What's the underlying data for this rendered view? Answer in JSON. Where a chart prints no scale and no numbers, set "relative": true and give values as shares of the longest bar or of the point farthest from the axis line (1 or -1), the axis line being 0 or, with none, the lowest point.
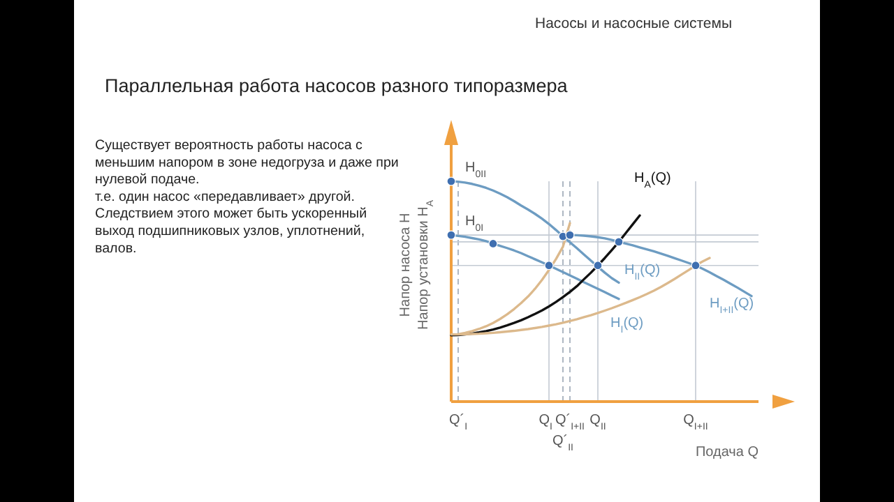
{
  "chart_data": {
    "type": "line",
    "relative": true,
    "title": "Параллельная работа насосов разного типоразмера",
    "xlabel": "Подача Q",
    "ylabel": "Напор насоса H\nНапор установки H$_{A}$",
    "line_style": "solid",
    "categories": [
      null,
      "Q´$_{I}$",
      null,
      null,
      null,
      null,
      null,
      null,
      null,
      null,
      null,
      null,
      null,
      null,
      "Q$_{I}$",
      null,
      "Q´$_{II}$",
      "Q´$_{I+II}$",
      null,
      null,
      null,
      "Q$_{II}$",
      null,
      null,
      null,
      null,
      null,
      null,
      null,
      null,
      null,
      null,
      null,
      null,
      null,
      "Q$_{I+II}$",
      null,
      null,
      null,
      null,
      null,
      null,
      null,
      null,
      null
    ],
    "series": [
      {
        "name": "H$_{II}$(Q)",
        "color": "#6d9cc2",
        "values": [
          1,
          0.998,
          0.994,
          0.988,
          0.98,
          0.97,
          0.958,
          0.944,
          0.928,
          0.91,
          0.89,
          0.872,
          0.852,
          0.83,
          0.806,
          0.779,
          0.75,
          0.723,
          0.696,
          0.668,
          0.64,
          0.612,
          0.585,
          0.56,
          0.54,
          null,
          null,
          null,
          null,
          null,
          null,
          null,
          null,
          null,
          null,
          null,
          null,
          null,
          null,
          null,
          null,
          null,
          null,
          null,
          null
        ]
      },
      {
        "name": "H$_{I}$(Q)",
        "color": "#6d9cc2",
        "values": [
          0.756,
          0.752,
          0.748,
          0.742,
          0.736,
          0.728,
          0.717,
          0.707,
          0.697,
          0.686,
          0.674,
          0.66,
          0.646,
          0.632,
          0.618,
          0.603,
          0.588,
          0.573,
          0.558,
          0.542,
          0.527,
          0.512,
          0.497,
          0.481,
          0.466,
          null,
          null,
          null,
          null,
          null,
          null,
          null,
          null,
          null,
          null,
          null,
          null,
          null,
          null,
          null,
          null,
          null,
          null,
          null,
          null
        ]
      },
      {
        "name": "H$_{I+II}$(Q)",
        "color": "#6d9cc2",
        "values": [
          null,
          null,
          null,
          null,
          null,
          null,
          null,
          null,
          null,
          null,
          null,
          null,
          null,
          null,
          null,
          null,
          null,
          0.756,
          0.755,
          0.753,
          0.75,
          0.746,
          0.741,
          0.734,
          0.725,
          0.717,
          0.709,
          0.7,
          0.691,
          0.682,
          0.672,
          0.662,
          0.651,
          0.64,
          0.629,
          0.618,
          0.603,
          0.587,
          0.57,
          0.553,
          0.535,
          0.517,
          0.498,
          0.479,
          null
        ]
      },
      {
        "name": "H$_{A}$(Q)",
        "color": "#111111",
        "values": [
          0.301,
          0.302,
          0.305,
          0.309,
          0.314,
          0.32,
          0.327,
          0.336,
          0.346,
          0.357,
          0.369,
          0.383,
          0.398,
          0.414,
          0.432,
          0.452,
          0.474,
          0.498,
          0.524,
          0.555,
          0.585,
          0.618,
          0.652,
          0.688,
          0.725,
          0.765,
          0.805,
          0.845,
          null,
          null,
          null,
          null,
          null,
          null,
          null,
          null,
          null,
          null,
          null,
          null,
          null,
          null,
          null,
          null,
          null
        ]
      },
      {
        "color": "#dcb98c",
        "values": [
          null,
          0.306,
          0.312,
          0.32,
          0.33,
          0.342,
          0.357,
          0.375,
          0.396,
          0.42,
          0.447,
          0.477,
          0.512,
          0.552,
          0.597,
          0.647,
          0.703,
          0.81,
          null,
          null,
          null,
          null,
          null,
          null,
          null,
          null,
          null,
          null,
          null,
          null,
          null,
          null,
          null,
          null,
          null,
          null,
          null,
          null,
          null,
          null,
          null,
          null,
          null,
          null,
          null
        ]
      },
      {
        "color": "#dcb98c",
        "values": [
          0.305,
          0.305,
          0.306,
          0.307,
          0.308,
          0.31,
          0.312,
          0.315,
          0.318,
          0.321,
          0.325,
          0.329,
          0.334,
          0.339,
          0.345,
          0.351,
          0.358,
          0.366,
          0.374,
          0.383,
          0.392,
          0.402,
          0.413,
          0.424,
          0.436,
          0.448,
          0.461,
          0.474,
          0.488,
          0.503,
          0.52,
          0.538,
          0.557,
          0.577,
          0.597,
          0.618,
          0.636,
          0.652,
          null,
          null,
          null,
          null,
          null,
          null,
          null
        ]
      },
      {
        "type": "scatter",
        "marker": "circle",
        "color": "#3f6fb0",
        "values": [
          1,
          null,
          null,
          null,
          null,
          null,
          null,
          null,
          null,
          null,
          null,
          null,
          null,
          null,
          null,
          null,
          0.75,
          null,
          null,
          null,
          null,
          null,
          null,
          null,
          null,
          null,
          null,
          null,
          null,
          null,
          null,
          null,
          null,
          null,
          null,
          null,
          null,
          null,
          null,
          null,
          null,
          null,
          null,
          null,
          null
        ]
      },
      {
        "type": "scatter",
        "marker": "circle",
        "color": "#3f6fb0",
        "values": [
          0.756,
          null,
          null,
          null,
          null,
          null,
          0.717,
          null,
          null,
          null,
          null,
          null,
          null,
          null,
          0.618,
          null,
          null,
          null,
          null,
          null,
          null,
          null,
          null,
          null,
          null,
          null,
          null,
          null,
          null,
          null,
          null,
          null,
          null,
          null,
          null,
          null,
          null,
          null,
          null,
          null,
          null,
          null,
          null,
          null,
          null
        ]
      },
      {
        "type": "scatter",
        "marker": "circle",
        "color": "#3f6fb0",
        "values": [
          null,
          null,
          null,
          null,
          null,
          null,
          null,
          null,
          null,
          null,
          null,
          null,
          null,
          null,
          null,
          null,
          null,
          0.756,
          null,
          null,
          null,
          0.618,
          null,
          null,
          0.725,
          null,
          null,
          null,
          null,
          null,
          null,
          null,
          null,
          null,
          null,
          0.618,
          null,
          null,
          null,
          null,
          null,
          null,
          null,
          null,
          null
        ]
      }
    ],
    "ref_lines": [
      {
        "axis": "x",
        "value": "Q´$_{I}$",
        "line_style": "dashed",
        "color": "#9aa6b4"
      },
      {
        "axis": "x",
        "value": "Q$_{I}$",
        "color": "#c3cad3"
      },
      {
        "axis": "x",
        "value": "Q´$_{II}$",
        "line_style": "dashed",
        "color": "#9aa6b4"
      },
      {
        "axis": "x",
        "value": "Q´$_{I+II}$",
        "line_style": "dashed",
        "color": "#9aa6b4"
      },
      {
        "axis": "x",
        "value": "Q$_{II}$",
        "color": "#c3cad3"
      },
      {
        "axis": "x",
        "value": "Q$_{I+II}$",
        "color": "#c3cad3"
      },
      {
        "axis": "y",
        "value": 0.756,
        "color": "#c3cad3"
      },
      {
        "axis": "y",
        "value": 0.725,
        "color": "#c3cad3"
      },
      {
        "axis": "y",
        "value": 0.618,
        "color": "#c3cad3"
      }
    ],
    "annotations": [
      "Насосы и насосные системы",
      "Существует вероятность работы насоса с меньшим напором в зоне недогруза и даже при нулевой подаче.\nт.е. один насос «передавливает» другой.\nСледствием этого может быть ускоренный выход подшипниковых узлов, уплотнений, валов.",
      {
        "text": "H$_{0II}$",
        "y": 1
      },
      {
        "text": "H$_{0I}$",
        "y": 0.756
      }
    ]
  }
}
